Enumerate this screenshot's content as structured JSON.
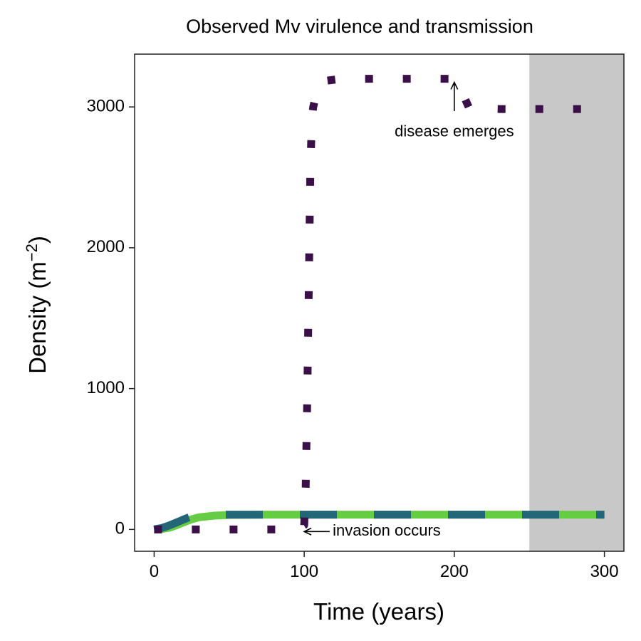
{
  "chart_data": {
    "type": "line",
    "title": "Observed Mv virulence and transmission",
    "xlabel": "Time (years)",
    "ylabel_base": "Density (m",
    "ylabel_sup": "−2",
    "ylabel_close": ")",
    "xlim": [
      -13,
      313
    ],
    "ylim": [
      -155,
      3375
    ],
    "xticks": [
      0,
      100,
      200,
      300
    ],
    "yticks": [
      0,
      1000,
      2000,
      3000
    ],
    "x_tick_labels": [
      "0",
      "100",
      "200",
      "300"
    ],
    "y_tick_labels": [
      "0",
      "1000",
      "2000",
      "3000"
    ],
    "grid": false,
    "legend": "none",
    "shaded_region": {
      "x_start": 250,
      "x_end": 313,
      "color": "#c8c8c8"
    },
    "series": [
      {
        "style": "dotted",
        "color": "#3b0f47",
        "x": [
          0,
          20,
          40,
          60,
          80,
          95,
          100,
          101,
          102,
          103,
          104,
          105,
          106,
          110,
          125,
          150,
          175,
          190,
          200,
          202,
          210,
          230,
          260,
          300
        ],
        "y": [
          0,
          0,
          0,
          0,
          0,
          0,
          30,
          300,
          900,
          1700,
          2500,
          2900,
          3000,
          3180,
          3200,
          3200,
          3200,
          3200,
          3200,
          3180,
          2990,
          2985,
          2985,
          2985
        ]
      },
      {
        "style": "solid",
        "color": "#66cc44",
        "x": [
          0,
          5,
          10,
          15,
          20,
          25,
          30,
          40,
          50,
          75,
          100,
          150,
          200,
          250,
          300
        ],
        "y": [
          0,
          3,
          12,
          30,
          52,
          72,
          86,
          98,
          103,
          105,
          105,
          105,
          105,
          105,
          105
        ]
      },
      {
        "style": "dashed",
        "color": "#226677",
        "x": [
          0,
          5,
          10,
          15,
          20,
          23,
          25,
          30,
          40,
          50,
          75,
          100,
          150,
          200,
          250,
          300
        ],
        "y": [
          0,
          10,
          28,
          50,
          72,
          85,
          93,
          100,
          104,
          105,
          105,
          105,
          105,
          105,
          105,
          105
        ]
      }
    ],
    "annotations": [
      {
        "text": "disease emerges",
        "x": 200,
        "y": 2820,
        "arrow_from": [
          200,
          2970
        ],
        "arrow_to": [
          200,
          3175
        ]
      },
      {
        "text": "invasion occurs",
        "x": 119,
        "y": -15,
        "arrow_from": [
          117,
          -15
        ],
        "arrow_to": [
          100,
          -15
        ]
      }
    ]
  }
}
